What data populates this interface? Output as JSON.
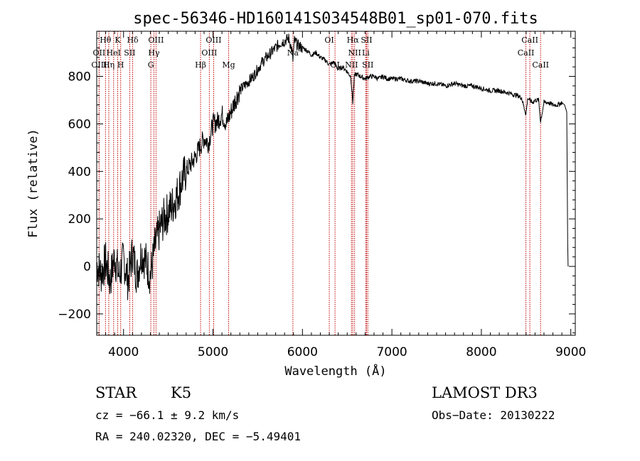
{
  "chart_data": {
    "type": "line",
    "title": "spec-56346-HD160141S034548B01_sp01-070.fits",
    "xlabel": "Wavelength (Å)",
    "ylabel": "Flux (relative)",
    "xlim": [
      3700,
      9050
    ],
    "ylim": [
      -290,
      990
    ],
    "xticks": [
      "4000",
      "5000",
      "6000",
      "7000",
      "8000",
      "9000"
    ],
    "yticks": [
      "−200",
      "0",
      "200",
      "400",
      "600",
      "800"
    ],
    "series": [
      {
        "name": "spectrum",
        "x": [
          3700,
          3750,
          3800,
          3850,
          3900,
          3950,
          4000,
          4050,
          4100,
          4150,
          4200,
          4250,
          4300,
          4350,
          4400,
          4450,
          4500,
          4550,
          4600,
          4650,
          4700,
          4750,
          4800,
          4850,
          4900,
          4950,
          5000,
          5050,
          5100,
          5150,
          5200,
          5250,
          5300,
          5350,
          5400,
          5450,
          5500,
          5550,
          5600,
          5650,
          5700,
          5750,
          5800,
          5850,
          5880,
          5893,
          5910,
          5950,
          6000,
          6050,
          6100,
          6150,
          6200,
          6250,
          6300,
          6350,
          6400,
          6450,
          6500,
          6540,
          6563,
          6580,
          6600,
          6650,
          6700,
          6750,
          6800,
          6850,
          6900,
          6950,
          7000,
          7100,
          7200,
          7300,
          7400,
          7500,
          7600,
          7700,
          7800,
          7900,
          8000,
          8100,
          8200,
          8300,
          8400,
          8450,
          8498,
          8520,
          8542,
          8570,
          8600,
          8640,
          8662,
          8700,
          8750,
          8800,
          8850,
          8900,
          8930,
          8955,
          8960,
          8965,
          8970
        ],
        "y": [
          10,
          -30,
          20,
          -60,
          40,
          -40,
          30,
          -60,
          60,
          -40,
          60,
          20,
          -40,
          80,
          150,
          200,
          230,
          260,
          300,
          360,
          400,
          430,
          460,
          500,
          540,
          520,
          600,
          610,
          640,
          600,
          650,
          700,
          740,
          760,
          780,
          800,
          830,
          860,
          880,
          900,
          920,
          940,
          950,
          960,
          910,
          870,
          950,
          930,
          920,
          910,
          890,
          900,
          880,
          870,
          850,
          860,
          830,
          840,
          820,
          800,
          690,
          800,
          810,
          800,
          790,
          800,
          800,
          790,
          800,
          790,
          790,
          790,
          780,
          780,
          770,
          770,
          760,
          770,
          760,
          760,
          750,
          740,
          740,
          730,
          720,
          710,
          640,
          710,
          700,
          690,
          700,
          700,
          610,
          690,
          690,
          680,
          680,
          690,
          680,
          650,
          360,
          100,
          0
        ]
      }
    ],
    "lines": [
      {
        "name": "Hθ",
        "wl": 3798,
        "row": 0
      },
      {
        "name": "OII",
        "wl": 3727,
        "row": 1
      },
      {
        "name": "OIII",
        "wl": 3727,
        "row": 2
      },
      {
        "name": "HeI",
        "wl": 3889,
        "row": 1
      },
      {
        "name": "Hη",
        "wl": 3835,
        "row": 2
      },
      {
        "name": "K",
        "wl": 3934,
        "row": 0
      },
      {
        "name": "H",
        "wl": 3968,
        "row": 2
      },
      {
        "name": "SII",
        "wl": 4069,
        "row": 1
      },
      {
        "name": "Hδ",
        "wl": 4102,
        "row": 0
      },
      {
        "name": "OIII",
        "wl": 4363,
        "row": 0
      },
      {
        "name": "Hγ",
        "wl": 4340,
        "row": 1
      },
      {
        "name": "G",
        "wl": 4305,
        "row": 2
      },
      {
        "name": "Hβ",
        "wl": 4861,
        "row": 2
      },
      {
        "name": "OIII",
        "wl": 5007,
        "row": 0
      },
      {
        "name": "OIII",
        "wl": 4959,
        "row": 1
      },
      {
        "name": "Mg",
        "wl": 5175,
        "row": 2
      },
      {
        "name": "Na",
        "wl": 5893,
        "row": 1
      },
      {
        "name": "OI",
        "wl": 6300,
        "row": 0
      },
      {
        "name": "OI",
        "wl": 6364,
        "row": 2
      },
      {
        "name": "Hα",
        "wl": 6563,
        "row": 0
      },
      {
        "name": "NII",
        "wl": 6583,
        "row": 1
      },
      {
        "name": "NII",
        "wl": 6548,
        "row": 2
      },
      {
        "name": "SII",
        "wl": 6717,
        "row": 0
      },
      {
        "name": "Li",
        "wl": 6708,
        "row": 1
      },
      {
        "name": "SII",
        "wl": 6731,
        "row": 2
      },
      {
        "name": "CaII",
        "wl": 8542,
        "row": 0
      },
      {
        "name": "CaII",
        "wl": 8498,
        "row": 1
      },
      {
        "name": "CaII",
        "wl": 8662,
        "row": 2
      }
    ],
    "line_color": "#c00000"
  },
  "info": {
    "object_class": "STAR",
    "subclass": "K5",
    "survey": "LAMOST DR3",
    "redshift": "cz = −66.1 ± 9.2 km/s",
    "obs_date": "Obs−Date: 20130222",
    "coords": "RA = 240.02320, DEC =  −5.49401"
  }
}
